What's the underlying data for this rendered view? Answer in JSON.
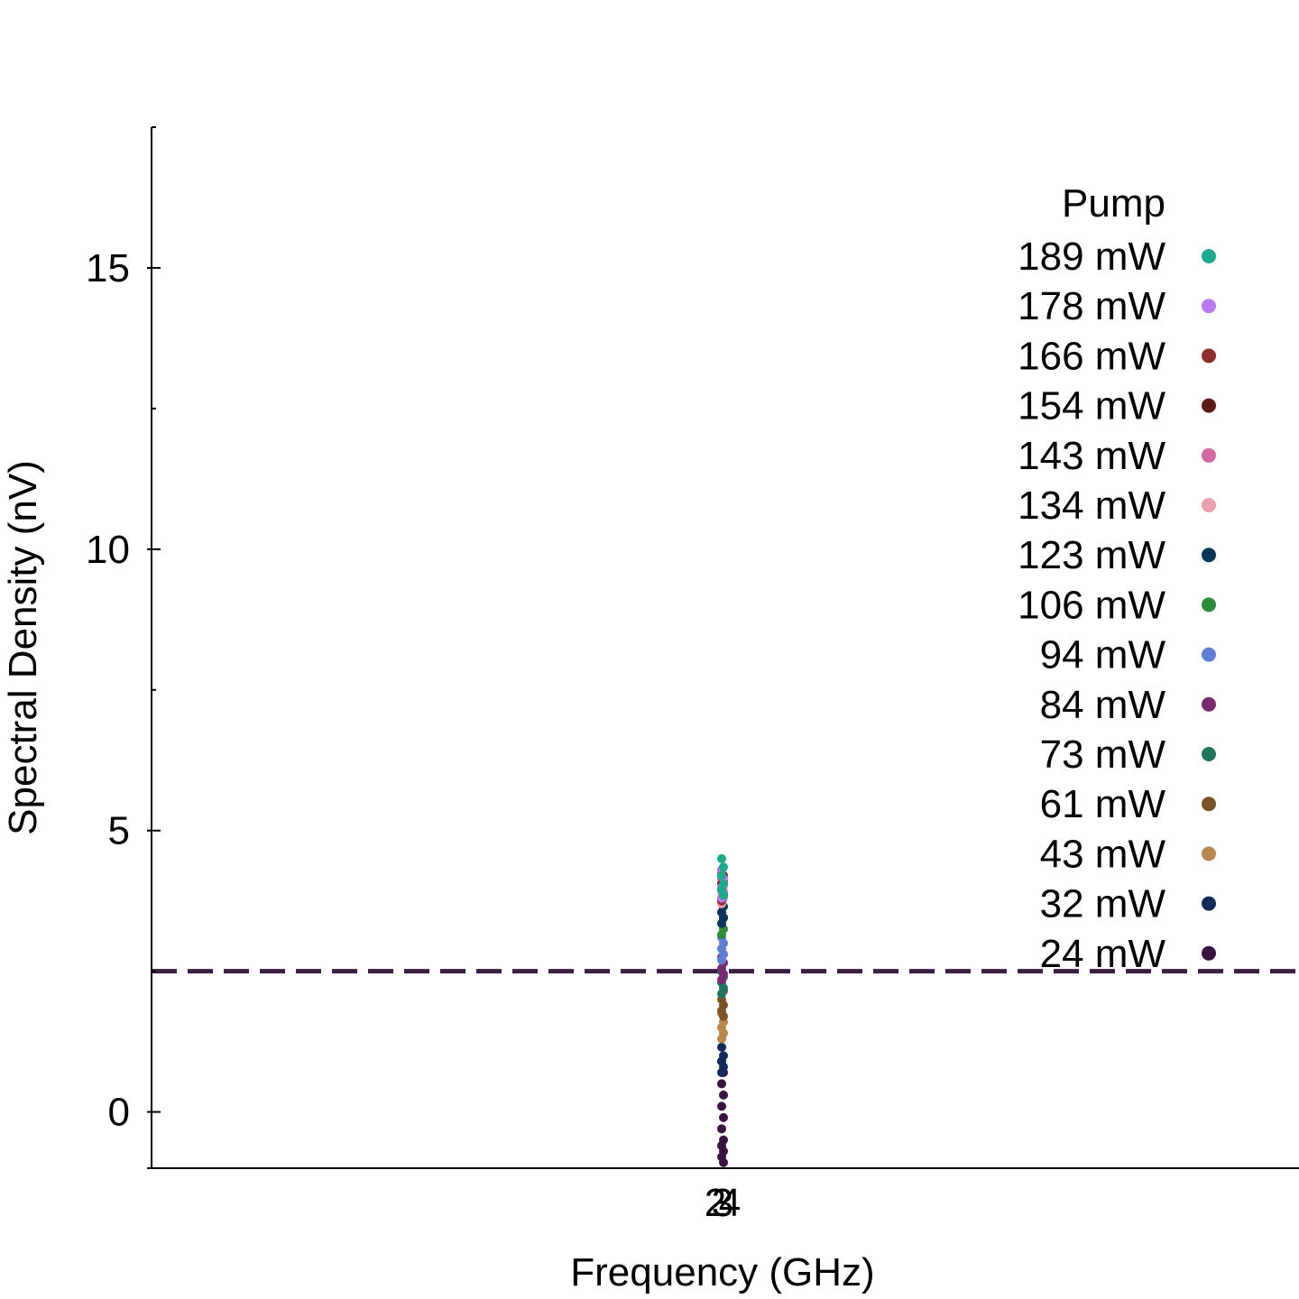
{
  "chart_data": {
    "type": "scatter",
    "title": "",
    "xlabel": "Frequency (GHz)",
    "ylabel": "Spectral Density (nV)",
    "ylim": [
      -1,
      17.5
    ],
    "yticks": [
      0,
      5,
      10,
      15
    ],
    "ytick_labels": [
      "0",
      "5",
      "10",
      "15"
    ],
    "x_tick_labels": [
      "2",
      "3",
      "4"
    ],
    "grid": false,
    "legend_title": "Pump",
    "legend_position": "top-right",
    "hline": {
      "y": 2.5,
      "style": "dashed",
      "color": "#3a1e44"
    },
    "series": [
      {
        "name": "189 mW",
        "color": "#1fa88b",
        "x": [
          3,
          3,
          3,
          3,
          3,
          3
        ],
        "y": [
          4.5,
          4.35,
          4.2,
          4.05,
          3.95,
          3.85
        ]
      },
      {
        "name": "178 mW",
        "color": "#b97aef",
        "x": [
          3,
          3,
          3,
          3,
          3
        ],
        "y": [
          4.3,
          4.15,
          4.0,
          3.9,
          3.8
        ]
      },
      {
        "name": "166 mW",
        "color": "#8e2f2f",
        "x": [
          3,
          3,
          3,
          3,
          3
        ],
        "y": [
          4.25,
          4.1,
          3.95,
          3.85,
          3.75
        ]
      },
      {
        "name": "154 mW",
        "color": "#5c1a17",
        "x": [
          3,
          3,
          3,
          3,
          3
        ],
        "y": [
          4.3,
          4.2,
          4.05,
          3.9,
          3.8
        ]
      },
      {
        "name": "143 mW",
        "color": "#d06aa0",
        "x": [
          3,
          3,
          3,
          3,
          3
        ],
        "y": [
          4.15,
          4.05,
          3.95,
          3.85,
          3.75
        ]
      },
      {
        "name": "134 mW",
        "color": "#eb9eac",
        "x": [
          3,
          3,
          3,
          3,
          3
        ],
        "y": [
          4.1,
          4.0,
          3.9,
          3.8,
          3.7
        ]
      },
      {
        "name": "123 mW",
        "color": "#093656",
        "x": [
          3,
          3,
          3,
          3,
          3
        ],
        "y": [
          3.75,
          3.65,
          3.55,
          3.45,
          3.35
        ]
      },
      {
        "name": "106 mW",
        "color": "#2e8b3a",
        "x": [
          3,
          3,
          3,
          3,
          3
        ],
        "y": [
          3.55,
          3.45,
          3.35,
          3.25,
          3.15
        ]
      },
      {
        "name": "94 mW",
        "color": "#5f7fd2",
        "x": [
          3,
          3,
          3,
          3,
          3
        ],
        "y": [
          3.1,
          3.0,
          2.9,
          2.8,
          2.7
        ]
      },
      {
        "name": "84 mW",
        "color": "#7a2a6e",
        "x": [
          3,
          3,
          3,
          3,
          3
        ],
        "y": [
          2.75,
          2.65,
          2.55,
          2.45,
          2.35
        ]
      },
      {
        "name": "73 mW",
        "color": "#21755e",
        "x": [
          3,
          3,
          3,
          3,
          3
        ],
        "y": [
          2.5,
          2.4,
          2.3,
          2.2,
          2.1
        ]
      },
      {
        "name": "61 mW",
        "color": "#7a5428",
        "x": [
          3,
          3,
          3,
          3,
          3,
          3
        ],
        "y": [
          2.3,
          2.15,
          2.0,
          1.9,
          1.8,
          1.7
        ]
      },
      {
        "name": "43 mW",
        "color": "#b8864f",
        "x": [
          3,
          3,
          3,
          3,
          3
        ],
        "y": [
          1.75,
          1.6,
          1.5,
          1.4,
          1.3
        ]
      },
      {
        "name": "32 mW",
        "color": "#142a5a",
        "x": [
          3,
          3,
          3,
          3,
          3
        ],
        "y": [
          1.15,
          1.0,
          0.9,
          0.8,
          0.7
        ]
      },
      {
        "name": "24 mW",
        "color": "#3a1440",
        "x": [
          3,
          3,
          3,
          3,
          3,
          3,
          3,
          3,
          3,
          3,
          3,
          3
        ],
        "y": [
          0.9,
          0.7,
          0.5,
          0.3,
          0.1,
          -0.1,
          -0.3,
          -0.5,
          -0.6,
          -0.7,
          -0.8,
          -0.9
        ]
      }
    ]
  }
}
